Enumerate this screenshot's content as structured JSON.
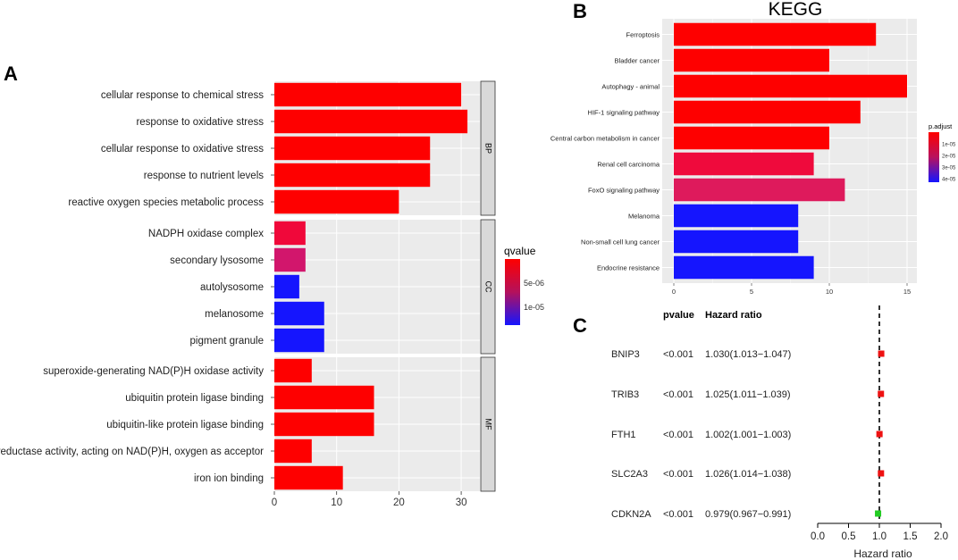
{
  "colors": {
    "low": "#fe0000",
    "mid": "#e0185c",
    "high": "#1515fe",
    "panel_bg": "#ebebeb",
    "grid": "#ffffff",
    "strip": "#d9d9d9",
    "square_red": "#ee1111",
    "square_green": "#22cc22"
  },
  "panel_labels": {
    "a": "A",
    "b": "B",
    "c": "C"
  },
  "chart_data": [
    {
      "id": "A",
      "type": "bar",
      "orientation": "horizontal",
      "facets": [
        {
          "strip": "BP",
          "categories": [
            "cellular response to chemical stress",
            "response to oxidative stress",
            "cellular response to oxidative stress",
            "response to nutrient levels",
            "reactive oxygen species metabolic process"
          ],
          "values": [
            30,
            31,
            25,
            25,
            20
          ],
          "qvalue": [
            1e-07,
            1e-07,
            1e-07,
            1e-07,
            1e-07
          ]
        },
        {
          "strip": "CC",
          "categories": [
            "NADPH oxidase complex",
            "secondary lysosome",
            "autolysosome",
            "melanosome",
            "pigment granule"
          ],
          "values": [
            5,
            5,
            4,
            8,
            8
          ],
          "qvalue": [
            1e-06,
            4e-06,
            1.5e-05,
            1.5e-05,
            1.5e-05
          ]
        },
        {
          "strip": "MF",
          "categories": [
            "superoxide-generating NAD(P)H oxidase activity",
            "ubiquitin protein ligase binding",
            "ubiquitin-like protein ligase binding",
            "oxidoreductase activity, acting on NAD(P)H, oxygen as acceptor",
            "iron ion binding"
          ],
          "values": [
            6,
            16,
            16,
            6,
            11
          ],
          "qvalue": [
            1e-07,
            1e-07,
            1e-07,
            1e-07,
            1e-07
          ]
        }
      ],
      "xlim": [
        0,
        33
      ],
      "x_ticks": [
        0,
        10,
        20,
        30
      ],
      "legend": {
        "title": "qvalue",
        "labels": [
          "5e-06",
          "1e-05"
        ]
      }
    },
    {
      "id": "B",
      "type": "bar",
      "orientation": "horizontal",
      "title": "KEGG",
      "categories": [
        "Ferroptosis",
        "Bladder cancer",
        "Autophagy - animal",
        "HIF-1 signaling pathway",
        "Central carbon metabolism in cancer",
        "Renal cell carcinoma",
        "FoxO signaling pathway",
        "Melanoma",
        "Non-small cell lung cancer",
        "Endocrine resistance"
      ],
      "values": [
        13,
        10,
        15,
        12,
        10,
        9,
        11,
        8,
        8,
        9
      ],
      "p_adjust": [
        1e-07,
        1e-07,
        1e-07,
        1e-07,
        1e-07,
        8e-06,
        1.8e-05,
        4.8e-05,
        4.8e-05,
        4.8e-05
      ],
      "xlim": [
        0,
        15.8
      ],
      "x_ticks": [
        0,
        5,
        10,
        15
      ],
      "legend": {
        "title": "p.adjust",
        "labels": [
          "1e-05",
          "2e-05",
          "3e-05",
          "4e-05"
        ]
      }
    },
    {
      "id": "C",
      "type": "forest",
      "header": {
        "pvalue": "pvalue",
        "hr": "Hazard ratio"
      },
      "genes": [
        "BNIP3",
        "TRIB3",
        "FTH1",
        "SLC2A3",
        "CDKN2A"
      ],
      "pvalues": [
        "<0.001",
        "<0.001",
        "<0.001",
        "<0.001",
        "<0.001"
      ],
      "hr_text": [
        "1.030(1.013−1.047)",
        "1.025(1.011−1.039)",
        "1.002(1.001−1.003)",
        "1.026(1.014−1.038)",
        "0.979(0.967−0.991)"
      ],
      "hr": [
        1.03,
        1.025,
        1.002,
        1.026,
        0.979
      ],
      "ref_line": 1.0,
      "xlim": [
        0,
        2
      ],
      "x_ticks": [
        "0.0",
        "0.5",
        "1.0",
        "1.5",
        "2.0"
      ],
      "xlabel": "Hazard ratio"
    }
  ]
}
